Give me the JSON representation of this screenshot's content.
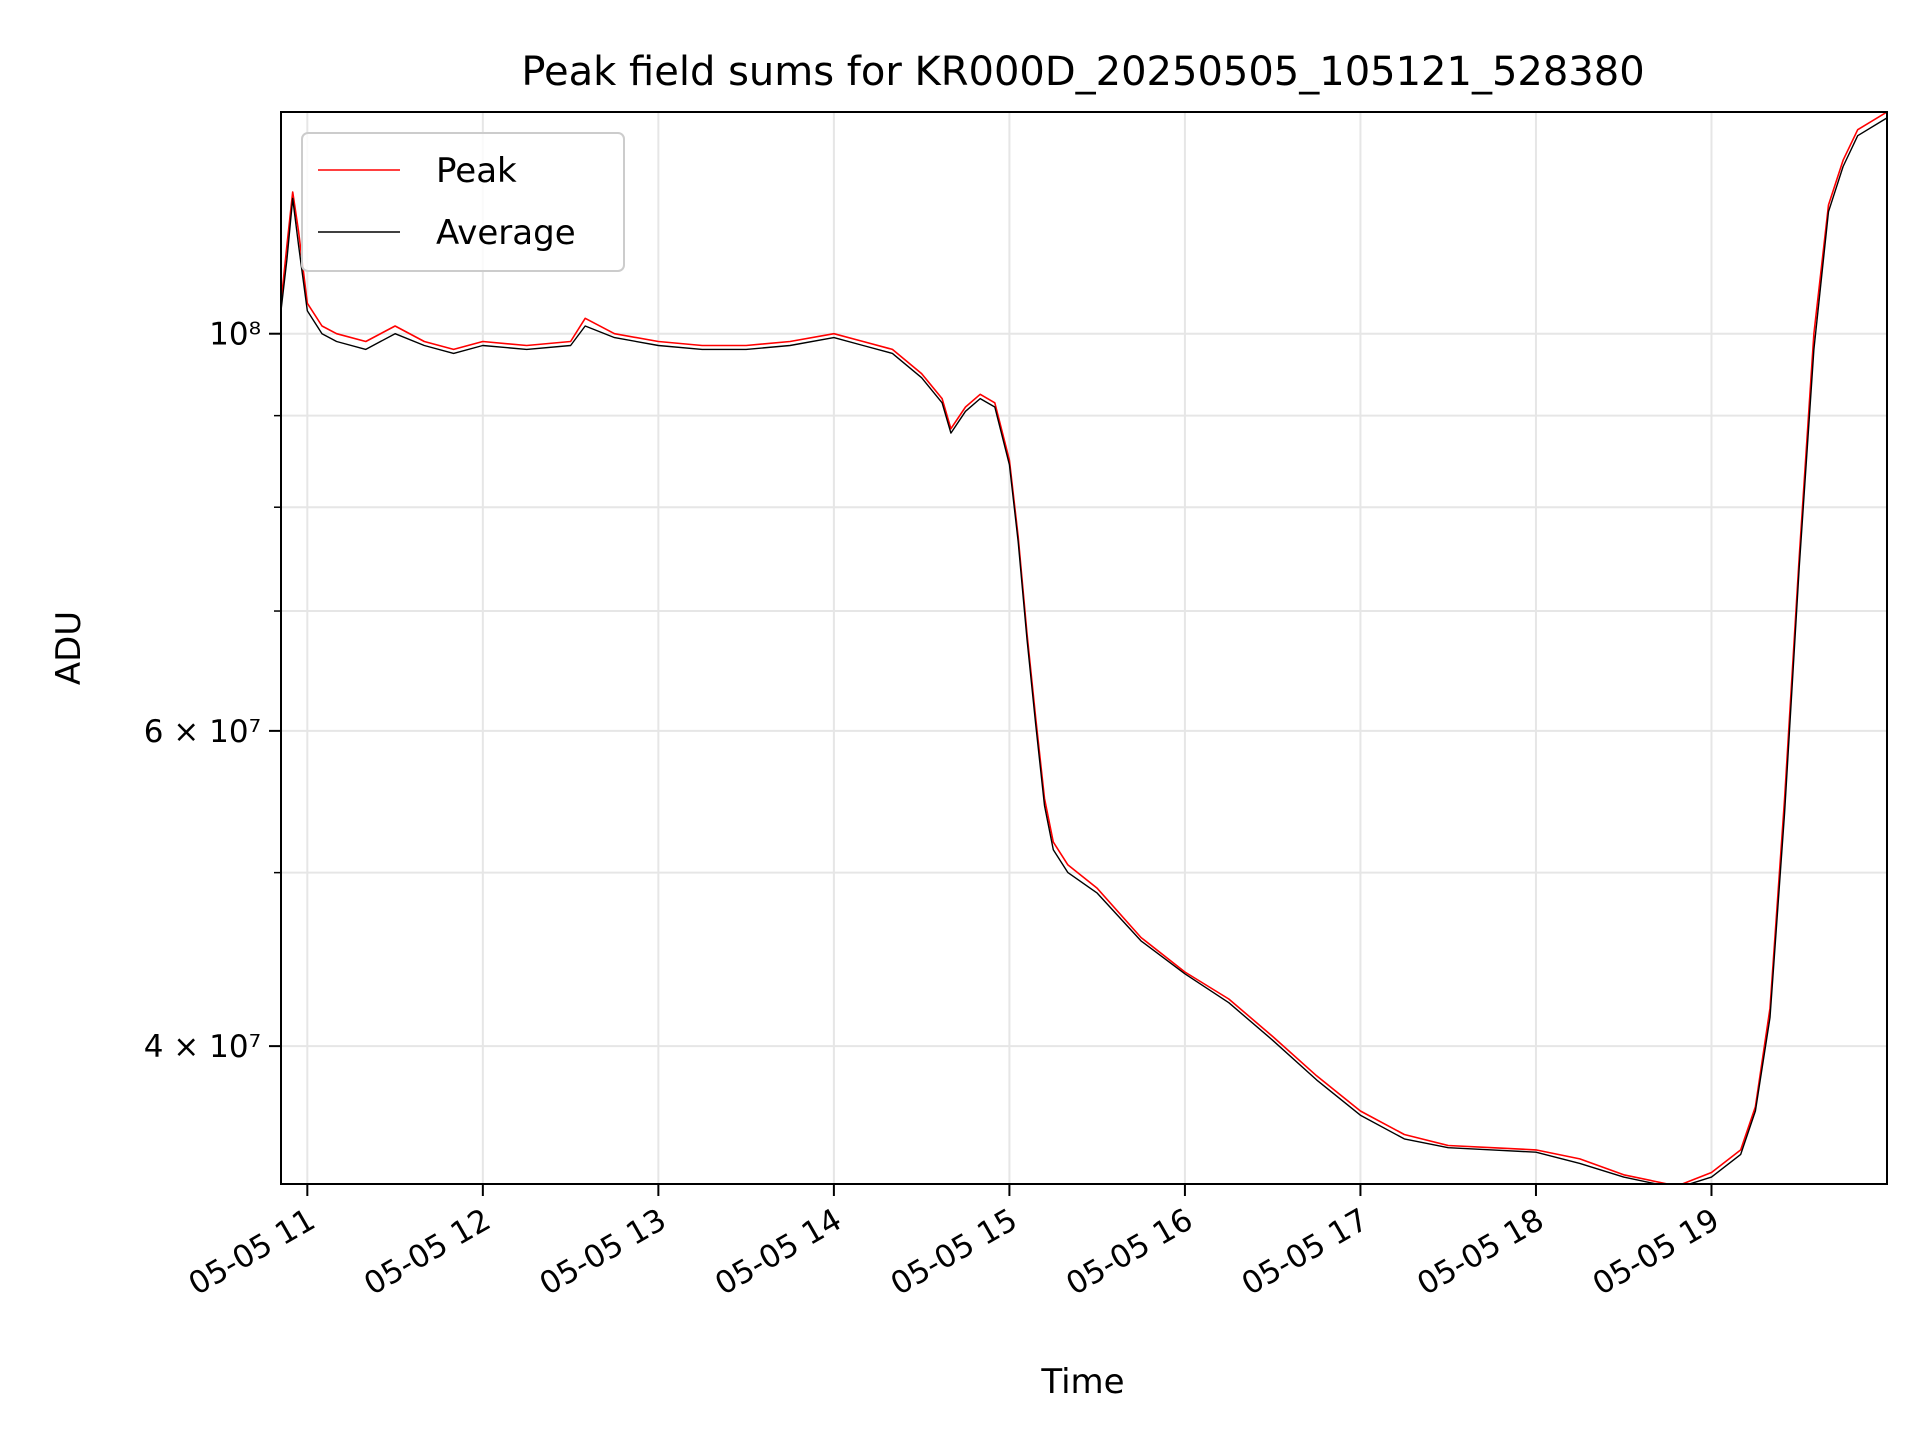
{
  "chart_data": {
    "type": "line",
    "title": "Peak field sums for KR000D_20250505_105121_528380",
    "xlabel": "Time",
    "ylabel": "ADU",
    "y_scale": "log",
    "grid": true,
    "legend_position": "top-left",
    "xlim": [
      "2025-05-05 10:51",
      "2025-05-05 20:00"
    ],
    "ylim": [
      33500000,
      133000000
    ],
    "x_ticks": [
      {
        "label": "05-05 11",
        "value": "2025-05-05 11:00"
      },
      {
        "label": "05-05 12",
        "value": "2025-05-05 12:00"
      },
      {
        "label": "05-05 13",
        "value": "2025-05-05 13:00"
      },
      {
        "label": "05-05 14",
        "value": "2025-05-05 14:00"
      },
      {
        "label": "05-05 15",
        "value": "2025-05-05 15:00"
      },
      {
        "label": "05-05 16",
        "value": "2025-05-05 16:00"
      },
      {
        "label": "05-05 17",
        "value": "2025-05-05 17:00"
      },
      {
        "label": "05-05 18",
        "value": "2025-05-05 18:00"
      },
      {
        "label": "05-05 19",
        "value": "2025-05-05 19:00"
      }
    ],
    "y_ticks": [
      {
        "label": "4 × 10⁷",
        "value": 40000000
      },
      {
        "label": "6 × 10⁷",
        "value": 60000000
      },
      {
        "label": "10⁸",
        "value": 100000000
      }
    ],
    "y_minor_ticks": [
      50000000,
      70000000,
      80000000,
      90000000
    ],
    "series": [
      {
        "name": "Peak",
        "color": "#ff0000",
        "x": [
          "2025-05-05 10:51",
          "2025-05-05 10:53",
          "2025-05-05 10:55",
          "2025-05-05 10:57",
          "2025-05-05 11:00",
          "2025-05-05 11:05",
          "2025-05-05 11:10",
          "2025-05-05 11:20",
          "2025-05-05 11:30",
          "2025-05-05 11:40",
          "2025-05-05 11:50",
          "2025-05-05 12:00",
          "2025-05-05 12:15",
          "2025-05-05 12:30",
          "2025-05-05 12:35",
          "2025-05-05 12:45",
          "2025-05-05 13:00",
          "2025-05-05 13:15",
          "2025-05-05 13:30",
          "2025-05-05 13:45",
          "2025-05-05 14:00",
          "2025-05-05 14:10",
          "2025-05-05 14:20",
          "2025-05-05 14:30",
          "2025-05-05 14:37",
          "2025-05-05 14:40",
          "2025-05-05 14:45",
          "2025-05-05 14:50",
          "2025-05-05 14:55",
          "2025-05-05 15:00",
          "2025-05-05 15:03",
          "2025-05-05 15:06",
          "2025-05-05 15:09",
          "2025-05-05 15:12",
          "2025-05-05 15:15",
          "2025-05-05 15:20",
          "2025-05-05 15:30",
          "2025-05-05 15:45",
          "2025-05-05 16:00",
          "2025-05-05 16:15",
          "2025-05-05 16:30",
          "2025-05-05 16:45",
          "2025-05-05 17:00",
          "2025-05-05 17:15",
          "2025-05-05 17:30",
          "2025-05-05 17:45",
          "2025-05-05 18:00",
          "2025-05-05 18:15",
          "2025-05-05 18:30",
          "2025-05-05 18:45",
          "2025-05-05 18:50",
          "2025-05-05 19:00",
          "2025-05-05 19:10",
          "2025-05-05 19:15",
          "2025-05-05 19:20",
          "2025-05-05 19:25",
          "2025-05-05 19:30",
          "2025-05-05 19:35",
          "2025-05-05 19:40",
          "2025-05-05 19:45",
          "2025-05-05 19:50",
          "2025-05-05 20:00"
        ],
        "values": [
          104000000,
          112000000,
          120000000,
          114000000,
          104000000,
          101000000,
          100000000,
          99000000,
          101000000,
          99000000,
          98000000,
          99000000,
          98500000,
          99000000,
          102000000,
          100000000,
          99000000,
          98500000,
          98500000,
          99000000,
          100000000,
          99000000,
          98000000,
          95000000,
          92000000,
          88500000,
          91000000,
          92500000,
          91500000,
          85000000,
          77000000,
          68000000,
          61000000,
          55000000,
          52000000,
          50500000,
          49000000,
          46000000,
          44000000,
          42500000,
          40500000,
          38500000,
          36800000,
          35700000,
          35200000,
          35100000,
          35000000,
          34600000,
          33900000,
          33500000,
          33500000,
          34000000,
          35000000,
          37000000,
          42000000,
          55000000,
          75000000,
          100000000,
          118000000,
          125000000,
          130000000,
          133000000
        ]
      },
      {
        "name": "Average",
        "color": "#000000",
        "x": [
          "2025-05-05 10:51",
          "2025-05-05 10:53",
          "2025-05-05 10:55",
          "2025-05-05 10:57",
          "2025-05-05 11:00",
          "2025-05-05 11:05",
          "2025-05-05 11:10",
          "2025-05-05 11:20",
          "2025-05-05 11:30",
          "2025-05-05 11:40",
          "2025-05-05 11:50",
          "2025-05-05 12:00",
          "2025-05-05 12:15",
          "2025-05-05 12:30",
          "2025-05-05 12:35",
          "2025-05-05 12:45",
          "2025-05-05 13:00",
          "2025-05-05 13:15",
          "2025-05-05 13:30",
          "2025-05-05 13:45",
          "2025-05-05 14:00",
          "2025-05-05 14:10",
          "2025-05-05 14:20",
          "2025-05-05 14:30",
          "2025-05-05 14:37",
          "2025-05-05 14:40",
          "2025-05-05 14:45",
          "2025-05-05 14:50",
          "2025-05-05 14:55",
          "2025-05-05 15:00",
          "2025-05-05 15:03",
          "2025-05-05 15:06",
          "2025-05-05 15:09",
          "2025-05-05 15:12",
          "2025-05-05 15:15",
          "2025-05-05 15:20",
          "2025-05-05 15:30",
          "2025-05-05 15:45",
          "2025-05-05 16:00",
          "2025-05-05 16:15",
          "2025-05-05 16:30",
          "2025-05-05 16:45",
          "2025-05-05 17:00",
          "2025-05-05 17:15",
          "2025-05-05 17:30",
          "2025-05-05 17:45",
          "2025-05-05 18:00",
          "2025-05-05 18:15",
          "2025-05-05 18:30",
          "2025-05-05 18:45",
          "2025-05-05 18:50",
          "2025-05-05 19:00",
          "2025-05-05 19:10",
          "2025-05-05 19:15",
          "2025-05-05 19:20",
          "2025-05-05 19:25",
          "2025-05-05 19:30",
          "2025-05-05 19:35",
          "2025-05-05 19:40",
          "2025-05-05 19:45",
          "2025-05-05 19:50",
          "2025-05-05 20:00"
        ],
        "values": [
          103000000,
          110000000,
          119000000,
          112000000,
          103000000,
          100000000,
          99000000,
          98000000,
          100000000,
          98500000,
          97500000,
          98500000,
          98000000,
          98500000,
          101000000,
          99500000,
          98500000,
          98000000,
          98000000,
          98500000,
          99500000,
          98500000,
          97500000,
          94500000,
          91500000,
          88000000,
          90500000,
          92000000,
          91000000,
          84500000,
          76500000,
          67500000,
          60500000,
          54500000,
          51500000,
          50000000,
          48700000,
          45800000,
          43900000,
          42300000,
          40300000,
          38300000,
          36600000,
          35500000,
          35100000,
          35000000,
          34900000,
          34400000,
          33800000,
          33400000,
          33400000,
          33800000,
          34800000,
          36800000,
          41500000,
          54000000,
          74000000,
          98000000,
          117000000,
          124000000,
          129000000,
          132000000
        ]
      }
    ]
  }
}
